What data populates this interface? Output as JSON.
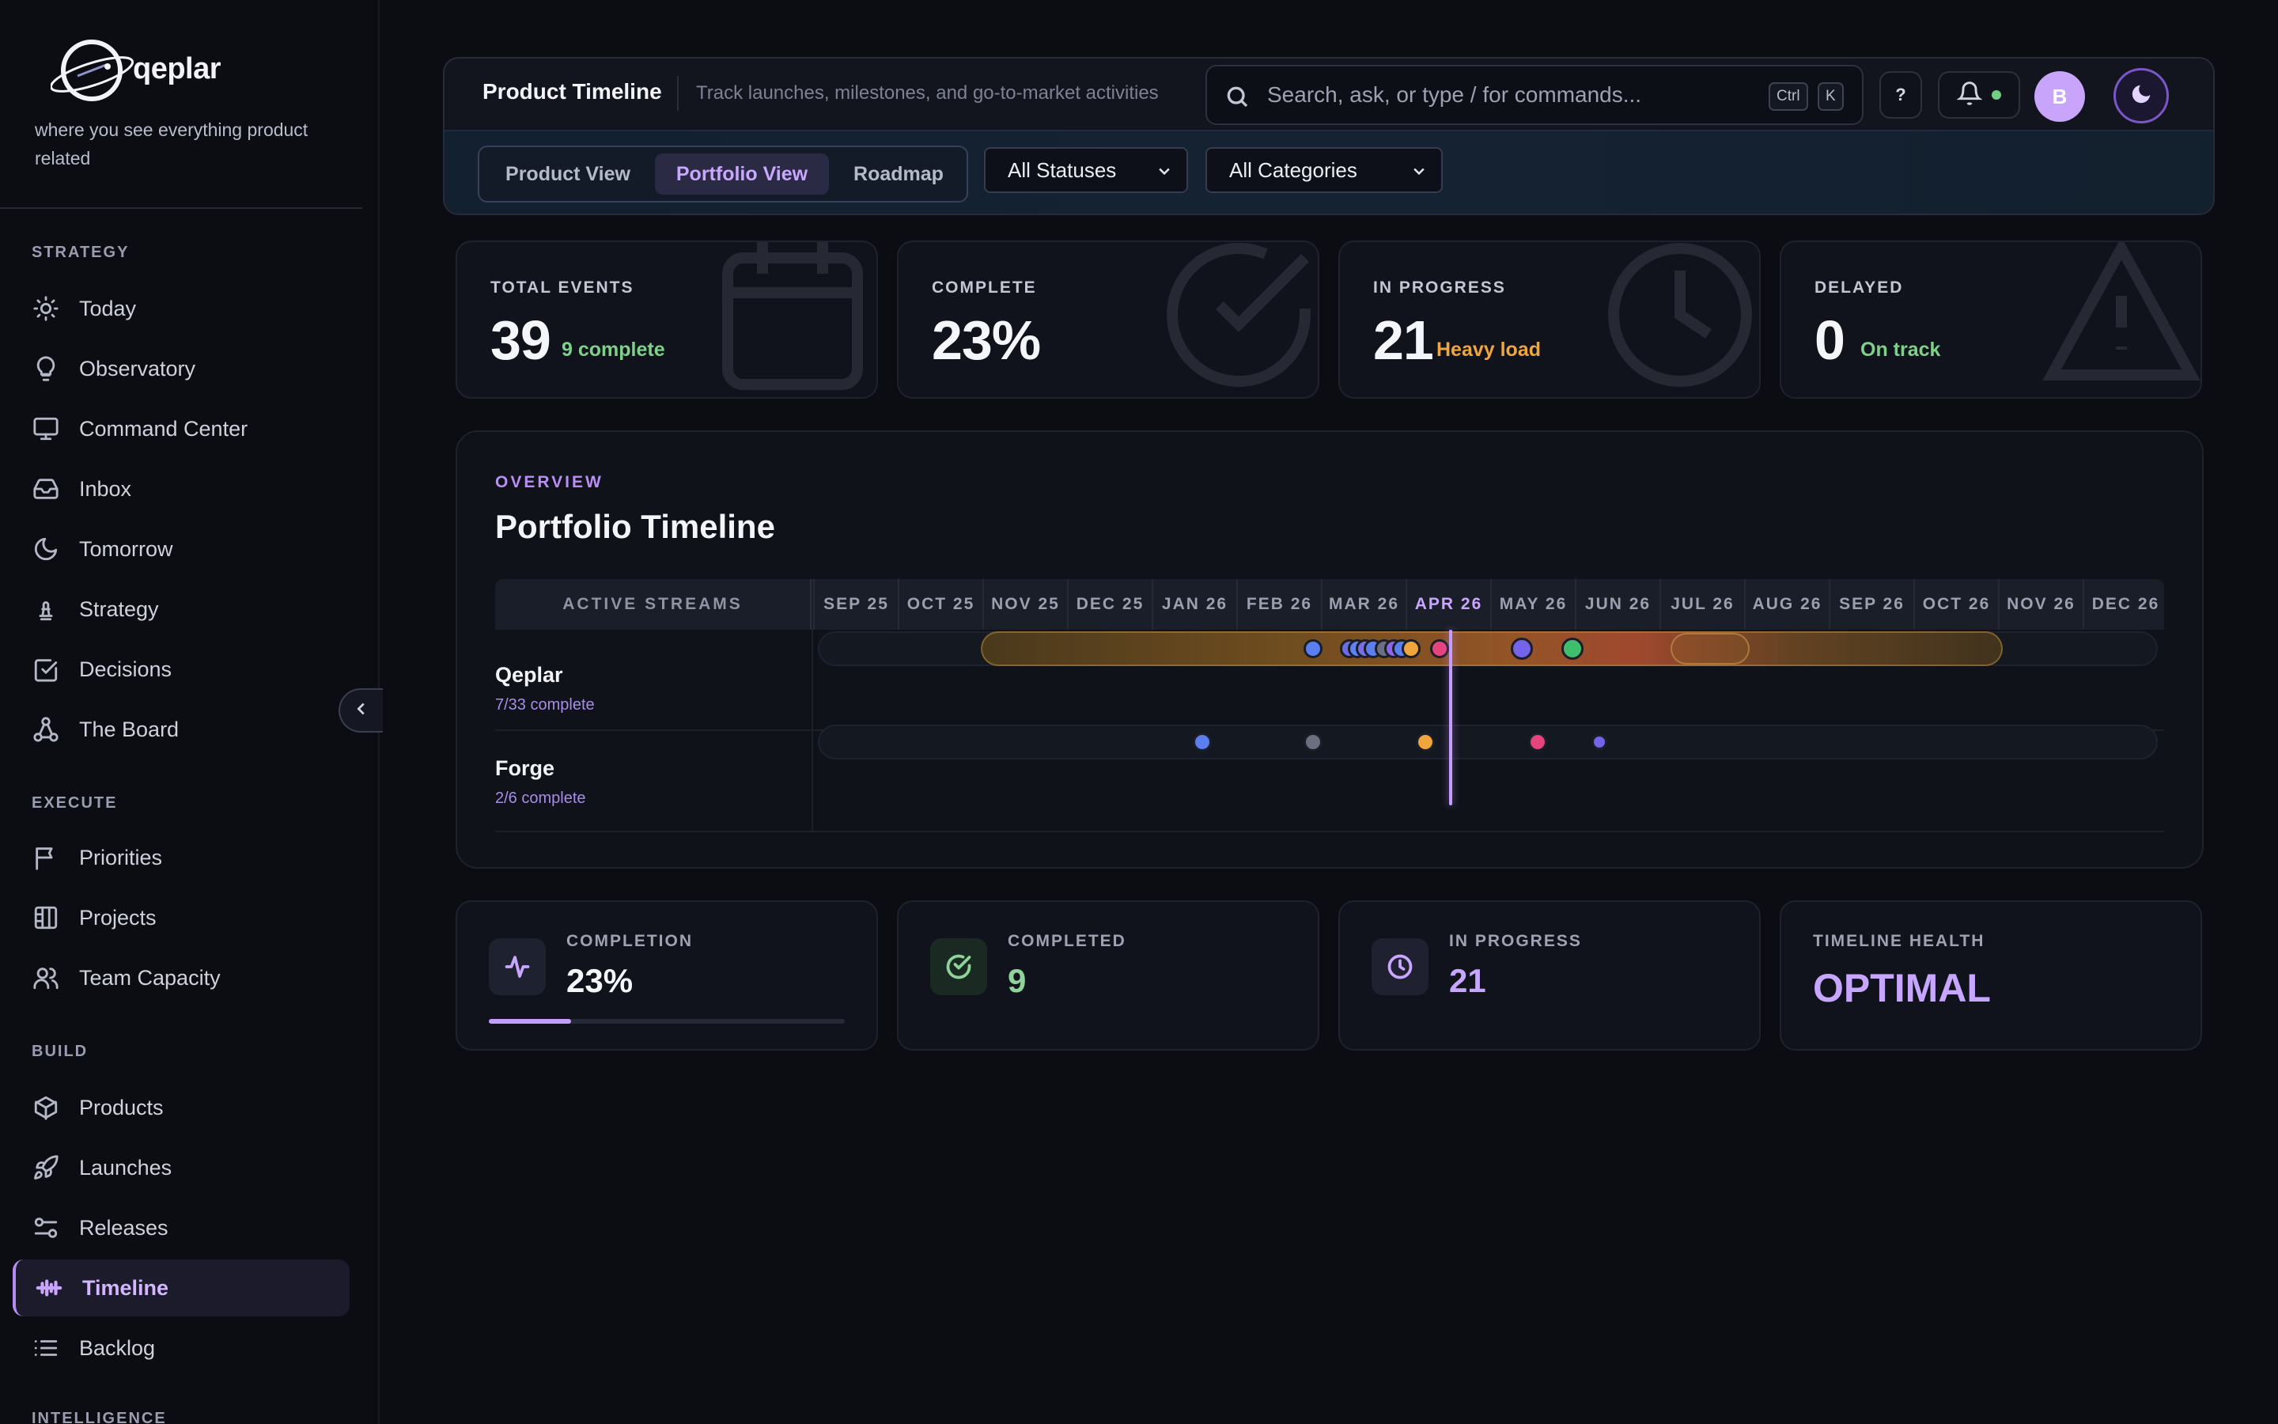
{
  "brand": {
    "name": "qeplar",
    "tagline": "where you see everything product related"
  },
  "sidebar": {
    "sections": [
      {
        "label": "STRATEGY",
        "items": [
          {
            "label": "Today",
            "icon": "sun-icon"
          },
          {
            "label": "Observatory",
            "icon": "lightbulb-icon"
          },
          {
            "label": "Command Center",
            "icon": "monitor-icon"
          },
          {
            "label": "Inbox",
            "icon": "inbox-icon"
          },
          {
            "label": "Tomorrow",
            "icon": "moon-icon"
          },
          {
            "label": "Strategy",
            "icon": "chess-piece-icon"
          },
          {
            "label": "Decisions",
            "icon": "checklist-icon"
          },
          {
            "label": "The Board",
            "icon": "network-icon"
          }
        ]
      },
      {
        "label": "EXECUTE",
        "items": [
          {
            "label": "Priorities",
            "icon": "flag-icon"
          },
          {
            "label": "Projects",
            "icon": "columns-icon"
          },
          {
            "label": "Team Capacity",
            "icon": "users-icon"
          }
        ]
      },
      {
        "label": "BUILD",
        "items": [
          {
            "label": "Products",
            "icon": "box-icon"
          },
          {
            "label": "Launches",
            "icon": "rocket-icon"
          },
          {
            "label": "Releases",
            "icon": "sliders-icon"
          },
          {
            "label": "Timeline",
            "icon": "timeline-icon",
            "active": true
          },
          {
            "label": "Backlog",
            "icon": "list-icon"
          }
        ]
      },
      {
        "label": "INTELLIGENCE",
        "items": []
      }
    ]
  },
  "header": {
    "title": "Product Timeline",
    "subtitle": "Track launches, milestones, and go-to-market activities",
    "search_placeholder": "Search, ask, or type / for commands...",
    "shortcut_keys": [
      "Ctrl",
      "K"
    ],
    "help_label": "?",
    "avatar_initial": "B",
    "views": [
      {
        "label": "Product View",
        "active": false
      },
      {
        "label": "Portfolio View",
        "active": true
      },
      {
        "label": "Roadmap",
        "active": false
      }
    ],
    "status_filter": "All Statuses",
    "category_filter": "All Categories"
  },
  "stats": [
    {
      "label": "TOTAL EVENTS",
      "value": "39",
      "note": "9 complete",
      "note_color": "#7fd08a",
      "icon": "calendar-icon"
    },
    {
      "label": "COMPLETE",
      "value": "23%",
      "note": "",
      "note_color": "#7fd08a",
      "icon": "check-circle-icon"
    },
    {
      "label": "IN PROGRESS",
      "value": "21",
      "note": "Heavy load",
      "note_color": "#f0a63c",
      "icon": "clock-icon"
    },
    {
      "label": "DELAYED",
      "value": "0",
      "note": "On track",
      "note_color": "#7fd08a",
      "icon": "warning-icon"
    }
  ],
  "timeline": {
    "overview_label": "OVERVIEW",
    "title": "Portfolio Timeline",
    "streams_header": "ACTIVE STREAMS",
    "months": [
      "SEP 25",
      "OCT 25",
      "NOV 25",
      "DEC 25",
      "JAN 26",
      "FEB 26",
      "MAR 26",
      "APR 26",
      "MAY 26",
      "JUN 26",
      "JUL 26",
      "AUG 26",
      "SEP 26",
      "OCT 26",
      "NOV 26",
      "DEC 26"
    ],
    "current_month": "APR 26",
    "streams": [
      {
        "name": "Qeplar",
        "progress": "7/33 complete"
      },
      {
        "name": "Forge",
        "progress": "2/6 complete"
      }
    ]
  },
  "metrics": [
    {
      "label": "COMPLETION",
      "value": "23%",
      "progress": 0.23,
      "icon": "activity-icon",
      "value_color": "#f5f6fa"
    },
    {
      "label": "COMPLETED",
      "value": "9",
      "icon": "check-circle-icon",
      "value_color": "#8fd39a"
    },
    {
      "label": "IN PROGRESS",
      "value": "21",
      "icon": "clock-icon",
      "value_color": "#c7a6ff"
    },
    {
      "label": "TIMELINE HEALTH",
      "value": "OPTIMAL",
      "icon": "",
      "value_color": "#c7a6ff"
    }
  ],
  "colors": {
    "accent": "#b58cf2",
    "complete": "#7fd08a",
    "warning": "#f0a63c"
  }
}
